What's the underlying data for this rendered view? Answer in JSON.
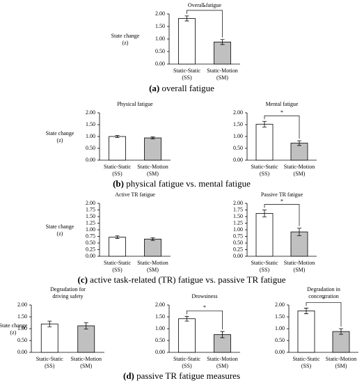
{
  "chart_data": [
    {
      "type": "bar",
      "title": [
        "Overall fatigue"
      ],
      "ylabel": [
        "State change",
        "(z)"
      ],
      "categories": [
        [
          "Static-Static",
          "(SS)"
        ],
        [
          "Static-Motion",
          "(SM)"
        ]
      ],
      "values": [
        1.82,
        0.88
      ],
      "errors": [
        0.1,
        0.1
      ],
      "colors": [
        "#ffffff",
        "#c0c0c0"
      ],
      "ylim": [
        0,
        2
      ],
      "yticks": [
        {
          "value": 0,
          "label": "0.00"
        },
        {
          "value": 0.5,
          "label": "0.50"
        },
        {
          "value": 1,
          "label": "1.00"
        },
        {
          "value": 1.5,
          "label": "1.50"
        },
        {
          "value": 2,
          "label": "2.00"
        }
      ],
      "significance": "*"
    },
    {
      "type": "bar",
      "title": [
        "Physical fatigue"
      ],
      "ylabel": [
        "State change",
        "(z)"
      ],
      "categories": [
        [
          "Static-Static",
          "(SS)"
        ],
        [
          "Static-Motion",
          "(SM)"
        ]
      ],
      "values": [
        1.0,
        0.94
      ],
      "errors": [
        0.04,
        0.04
      ],
      "colors": [
        "#ffffff",
        "#c0c0c0"
      ],
      "ylim": [
        0,
        2
      ],
      "yticks": [
        {
          "value": 0,
          "label": "0.00"
        },
        {
          "value": 0.5,
          "label": "0.50"
        },
        {
          "value": 1,
          "label": "1.00"
        },
        {
          "value": 1.5,
          "label": "1.50"
        },
        {
          "value": 2,
          "label": "2.00"
        }
      ]
    },
    {
      "type": "bar",
      "title": [
        "Mental fatigue"
      ],
      "categories": [
        [
          "Static-Static",
          "(SS)"
        ],
        [
          "Static-Motion",
          "(SM)"
        ]
      ],
      "values": [
        1.52,
        0.72
      ],
      "errors": [
        0.12,
        0.1
      ],
      "colors": [
        "#ffffff",
        "#c0c0c0"
      ],
      "ylim": [
        0,
        2
      ],
      "yticks": [
        {
          "value": 0,
          "label": "0.00"
        },
        {
          "value": 0.5,
          "label": "0.50"
        },
        {
          "value": 1,
          "label": "1.00"
        },
        {
          "value": 1.5,
          "label": "1.50"
        },
        {
          "value": 2,
          "label": "2.00"
        }
      ],
      "significance": "*"
    },
    {
      "type": "bar",
      "title": [
        "Active TR fatigue"
      ],
      "ylabel": [
        "State change",
        "(z)"
      ],
      "categories": [
        [
          "Static-Static",
          "(SS)"
        ],
        [
          "Static-Motion",
          "(SM)"
        ]
      ],
      "values": [
        0.72,
        0.65
      ],
      "errors": [
        0.05,
        0.05
      ],
      "colors": [
        "#ffffff",
        "#c0c0c0"
      ],
      "ylim": [
        0,
        2
      ],
      "yticks": [
        {
          "value": 0,
          "label": "0.00"
        },
        {
          "value": 0.25,
          "label": "0.25"
        },
        {
          "value": 0.5,
          "label": "0.50"
        },
        {
          "value": 0.75,
          "label": "0.75"
        },
        {
          "value": 1,
          "label": "1.00"
        },
        {
          "value": 1.25,
          "label": "1.25"
        },
        {
          "value": 1.5,
          "label": "1.50"
        },
        {
          "value": 1.75,
          "label": "1.75"
        },
        {
          "value": 2,
          "label": "2.00"
        }
      ]
    },
    {
      "type": "bar",
      "title": [
        "Passive TR fatigue"
      ],
      "categories": [
        [
          "Static-Static",
          "(SS)"
        ],
        [
          "Static-Motion",
          "(SM)"
        ]
      ],
      "values": [
        1.62,
        0.92
      ],
      "errors": [
        0.13,
        0.14
      ],
      "colors": [
        "#ffffff",
        "#c0c0c0"
      ],
      "ylim": [
        0,
        2
      ],
      "yticks": [
        {
          "value": 0,
          "label": "0.00"
        },
        {
          "value": 0.25,
          "label": "0.25"
        },
        {
          "value": 0.5,
          "label": "0.50"
        },
        {
          "value": 0.75,
          "label": "0.75"
        },
        {
          "value": 1,
          "label": "1.00"
        },
        {
          "value": 1.25,
          "label": "1.25"
        },
        {
          "value": 1.5,
          "label": "1.50"
        },
        {
          "value": 1.75,
          "label": "1.75"
        },
        {
          "value": 2,
          "label": "2.00"
        }
      ],
      "significance": "*"
    },
    {
      "type": "bar",
      "title": [
        "Degradation for",
        "driving safety"
      ],
      "ylabel": [
        "State change",
        "(z)"
      ],
      "categories": [
        [
          "Static-Static",
          "(SS)"
        ],
        [
          "Static-Motion",
          "(SM)"
        ]
      ],
      "values": [
        1.2,
        1.12
      ],
      "errors": [
        0.12,
        0.13
      ],
      "colors": [
        "#ffffff",
        "#c0c0c0"
      ],
      "ylim": [
        0,
        2
      ],
      "yticks": [
        {
          "value": 0,
          "label": "0.00"
        },
        {
          "value": 0.5,
          "label": "0.50"
        },
        {
          "value": 1,
          "label": "1.00"
        },
        {
          "value": 1.5,
          "label": "1.50"
        },
        {
          "value": 2,
          "label": "2.00"
        }
      ]
    },
    {
      "type": "bar",
      "title": [
        "Drowsiness"
      ],
      "categories": [
        [
          "Static-Static",
          "(SS)"
        ],
        [
          "Static-Motion",
          "(SM)"
        ]
      ],
      "values": [
        1.42,
        0.75
      ],
      "errors": [
        0.1,
        0.13
      ],
      "colors": [
        "#ffffff",
        "#c0c0c0"
      ],
      "ylim": [
        0,
        2
      ],
      "yticks": [
        {
          "value": 0,
          "label": "0.00"
        },
        {
          "value": 0.5,
          "label": "0.50"
        },
        {
          "value": 1,
          "label": "1.00"
        },
        {
          "value": 1.5,
          "label": "1.50"
        },
        {
          "value": 2,
          "label": "2.00"
        }
      ],
      "significance": "*"
    },
    {
      "type": "bar",
      "title": [
        "Degradation in",
        "concentration"
      ],
      "categories": [
        [
          "Static-Static",
          "(SS)"
        ],
        [
          "Static-Motion",
          "(SM)"
        ]
      ],
      "values": [
        1.75,
        0.88
      ],
      "errors": [
        0.12,
        0.12
      ],
      "colors": [
        "#ffffff",
        "#c0c0c0"
      ],
      "ylim": [
        0,
        2
      ],
      "yticks": [
        {
          "value": 0,
          "label": "0.00"
        },
        {
          "value": 0.5,
          "label": "0.50"
        },
        {
          "value": 1,
          "label": "1.00"
        },
        {
          "value": 1.5,
          "label": "1.50"
        },
        {
          "value": 2,
          "label": "2.00"
        }
      ],
      "significance": "*"
    }
  ],
  "captions": [
    {
      "label": "(a)",
      "text": "overall fatigue"
    },
    {
      "label": "(b)",
      "text": "physical fatigue vs. mental fatigue"
    },
    {
      "label": "(c)",
      "text": "active task-related (TR) fatigue vs. passive TR fatigue"
    },
    {
      "label": "(d)",
      "text": "passive TR fatigue measures"
    }
  ]
}
